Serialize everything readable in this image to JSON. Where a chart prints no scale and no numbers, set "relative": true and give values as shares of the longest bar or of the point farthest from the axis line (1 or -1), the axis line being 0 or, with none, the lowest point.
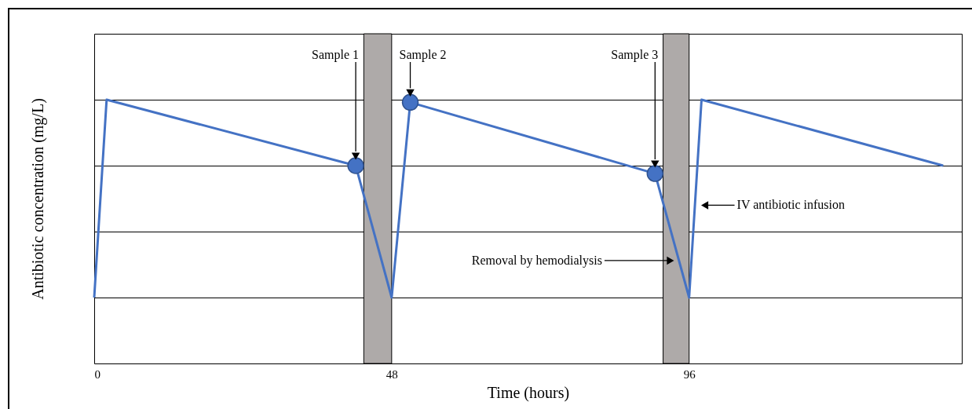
{
  "chart_data": {
    "type": "line",
    "xlabel": "Time (hours)",
    "ylabel": "Antibiotic concentration (mg/L)",
    "relative": true,
    "xlim": [
      0,
      140
    ],
    "xticks": [
      0,
      48,
      96
    ],
    "grid": "y",
    "series": [
      {
        "color": "#4472c4",
        "x": [
          0,
          2,
          42.2,
          48,
          51,
          90.5,
          96,
          98,
          137
        ],
        "values": [
          0.25,
          1,
          0.75,
          0.25,
          0.99,
          0.72,
          0.25,
          1,
          0.75
        ]
      },
      {
        "type": "scatter",
        "color": "#4472c4",
        "marker": "circle",
        "x": [
          42.2,
          51,
          90.5
        ],
        "values": [
          0.75,
          0.99,
          0.72
        ]
      }
    ],
    "bands": [
      {
        "axis": "x",
        "from": 43.5,
        "to": 48,
        "color": "#aeaaa9"
      },
      {
        "axis": "x",
        "from": 91.8,
        "to": 96,
        "color": "#aeaaa9"
      }
    ],
    "annotations": [
      "Sample 1",
      "Sample 2",
      "Sample 3",
      {
        "text": "IV antibiotic infusion",
        "x": 97.5,
        "y": 0.6
      },
      {
        "text": "Removal by hemodialysis",
        "x": 94,
        "y": 0.39
      }
    ]
  }
}
